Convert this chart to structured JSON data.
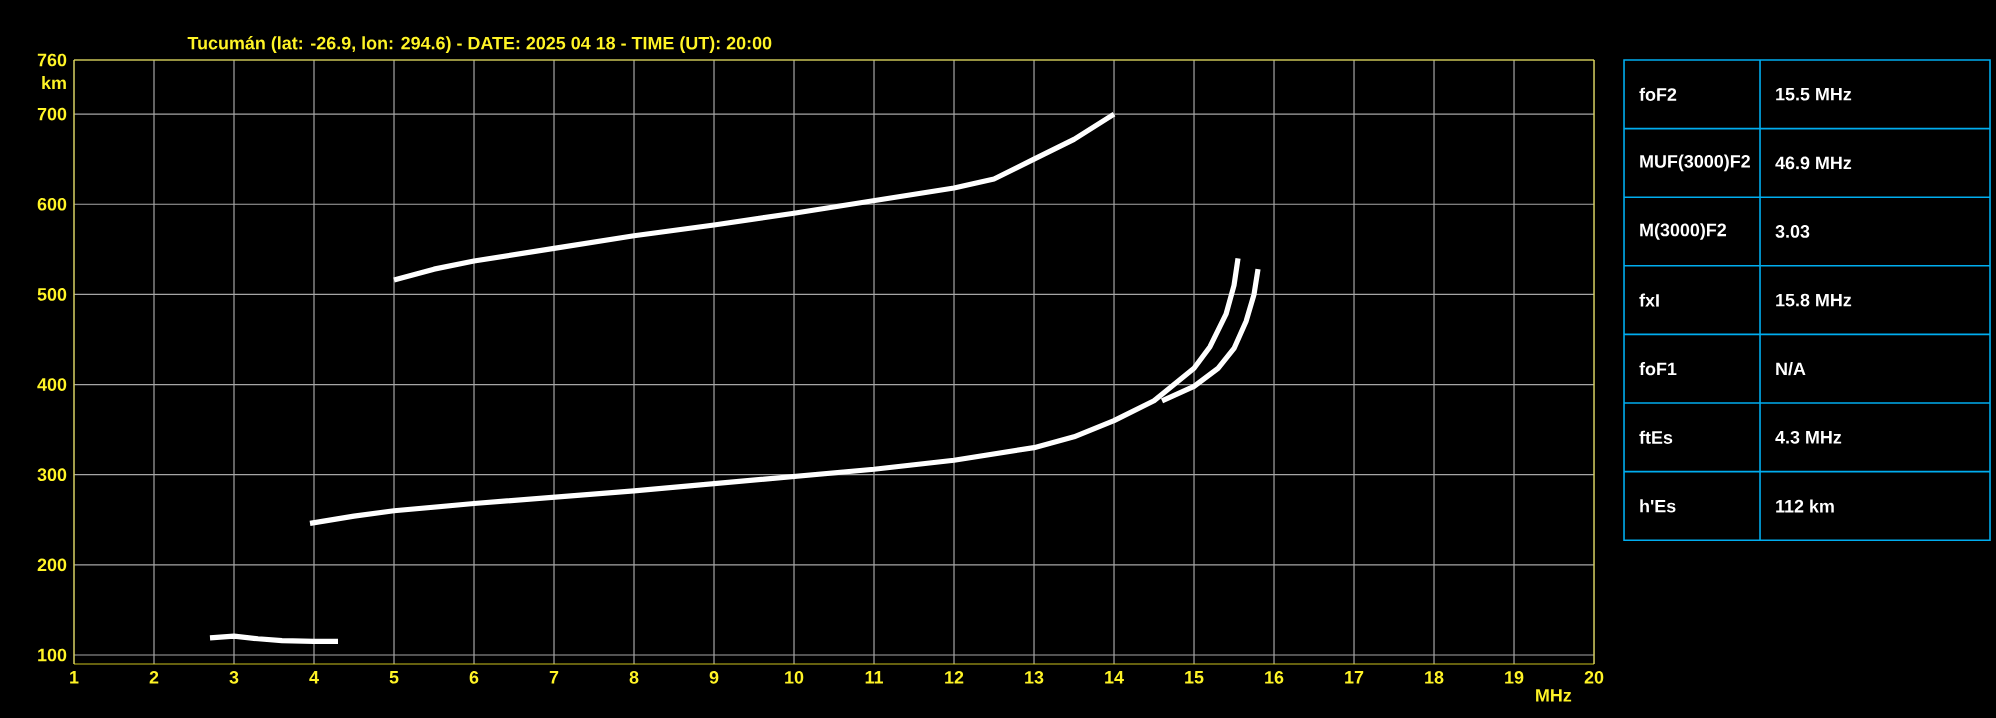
{
  "chart_data": [
    {
      "type": "line",
      "title": "Tucumán (lat: -26.9, lon: 294.6) - DATE: 2025 04 18 - TIME (UT): 20:00",
      "xlabel": "MHz",
      "ylabel": "km",
      "xlim": [
        1,
        20
      ],
      "ylim": [
        90,
        760
      ],
      "xticks": [
        1,
        2,
        3,
        4,
        5,
        6,
        7,
        8,
        9,
        10,
        11,
        12,
        13,
        14,
        15,
        16,
        17,
        18,
        19,
        20
      ],
      "yticks": [
        100,
        200,
        300,
        400,
        500,
        600,
        700,
        760
      ],
      "grid": true,
      "marker": "none",
      "line_style": "solid",
      "series": [
        {
          "color": "#ffffff",
          "x": [
            2.7,
            3.0,
            3.3,
            3.6,
            4.0,
            4.3
          ],
          "values": [
            119,
            121,
            118,
            116,
            115,
            115
          ]
        },
        {
          "color": "#ffffff",
          "x": [
            3.95,
            4.5,
            5,
            6,
            7,
            8,
            9,
            10,
            11,
            12,
            13,
            13.5,
            14,
            14.5,
            15,
            15.2,
            15.4,
            15.5,
            15.55
          ],
          "values": [
            246,
            254,
            260,
            268,
            275,
            282,
            290,
            298,
            306,
            316,
            330,
            342,
            360,
            382,
            418,
            442,
            478,
            510,
            540
          ]
        },
        {
          "color": "#ffffff",
          "x": [
            14.6,
            15,
            15.3,
            15.5,
            15.65,
            15.75,
            15.8
          ],
          "values": [
            382,
            398,
            418,
            440,
            470,
            500,
            528
          ]
        },
        {
          "color": "#ffffff",
          "x": [
            5,
            5.5,
            6,
            7,
            8,
            9,
            10,
            11,
            12,
            12.5,
            13,
            13.5,
            14
          ],
          "values": [
            516,
            528,
            537,
            551,
            565,
            577,
            590,
            604,
            618,
            628,
            650,
            672,
            700
          ]
        }
      ]
    },
    {
      "type": "other",
      "annotations": [
        "foF2",
        "15.5 MHz",
        "MUF(3000)F2",
        "46.9 MHz",
        "M(3000)F2",
        "3.03",
        "fxI",
        "15.8 MHz",
        "foF1",
        "N/A",
        "ftEs",
        "4.3 MHz",
        "h'Es",
        "112 km"
      ]
    }
  ]
}
